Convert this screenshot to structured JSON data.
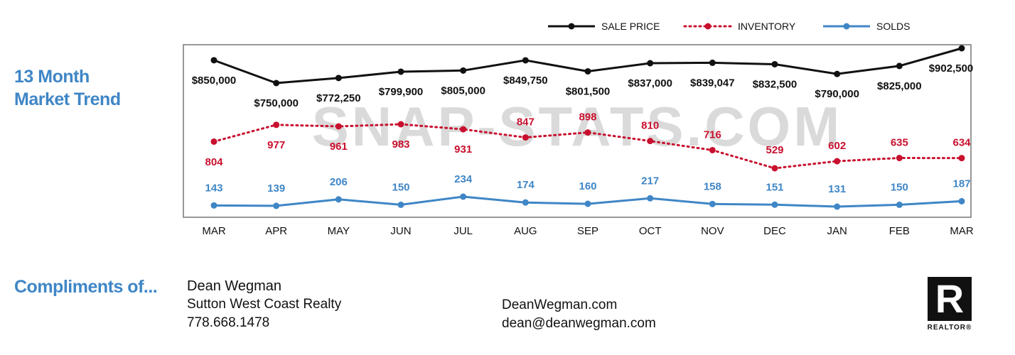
{
  "heading": {
    "line1": "13 Month",
    "line2": "Market Trend"
  },
  "watermark": "SNAP-STATS.COM",
  "colors": {
    "sale_price": "#111111",
    "inventory": "#c8102e",
    "solds": "#3f86c6",
    "watermark": "#d4d4d4",
    "accent": "#3f86c6"
  },
  "chart_data": {
    "type": "line",
    "categories": [
      "MAR",
      "APR",
      "MAY",
      "JUN",
      "JUL",
      "AUG",
      "SEP",
      "OCT",
      "NOV",
      "DEC",
      "JAN",
      "FEB",
      "MAR"
    ],
    "series": [
      {
        "name": "SALE PRICE",
        "style": "solid",
        "values": [
          850000,
          750000,
          772250,
          799900,
          805000,
          849750,
          801500,
          837000,
          839047,
          832500,
          790000,
          825000,
          902500
        ],
        "labels": [
          "$850,000",
          "$750,000",
          "$772,250",
          "$799,900",
          "$805,000",
          "$849,750",
          "$801,500",
          "$837,000",
          "$839,047",
          "$832,500",
          "$790,000",
          "$825,000",
          "$902,500"
        ]
      },
      {
        "name": "INVENTORY",
        "style": "dotted",
        "values": [
          804,
          977,
          961,
          983,
          931,
          847,
          898,
          810,
          716,
          529,
          602,
          635,
          634
        ],
        "labels": [
          "804",
          "977",
          "961",
          "983",
          "931",
          "847",
          "898",
          "810",
          "716",
          "529",
          "602",
          "635",
          "634"
        ]
      },
      {
        "name": "SOLDS",
        "style": "solid",
        "values": [
          143,
          139,
          206,
          150,
          234,
          174,
          160,
          217,
          158,
          151,
          131,
          150,
          187
        ],
        "labels": [
          "143",
          "139",
          "206",
          "150",
          "234",
          "174",
          "160",
          "217",
          "158",
          "151",
          "131",
          "150",
          "187"
        ]
      }
    ],
    "legend_position": "top-right",
    "grid": false
  },
  "footer": {
    "compliments": "Compliments of...",
    "name": "Dean Wegman",
    "company": "Sutton West Coast Realty",
    "phone": "778.668.1478",
    "website": "DeanWegman.com",
    "email": "dean@deanwegman.com"
  },
  "logo": {
    "letter": "R",
    "word": "REALTOR®"
  }
}
